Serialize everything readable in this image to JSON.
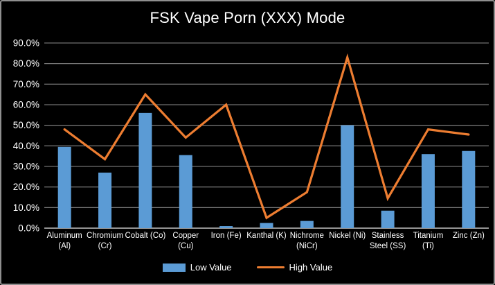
{
  "window": {
    "background": "#000000",
    "border_color": "#8f8f8f",
    "text_color": "#ffffff"
  },
  "chart_data": {
    "type": "bar+line",
    "title": "FSK Vape Porn (XXX) Mode",
    "categories": [
      "Aluminum (Al)",
      "Chromium (Cr)",
      "Cobalt (Co)",
      "Copper (Cu)",
      "Iron (Fe)",
      "Kanthal (K)",
      "Nichrome (NiCr)",
      "Nickel (Ni)",
      "Stainless Steel (SS)",
      "Titanium (Ti)",
      "Zinc (Zn)"
    ],
    "category_label_lines": [
      [
        "Aluminum",
        "(Al)"
      ],
      [
        "Chromium",
        "(Cr)"
      ],
      [
        "Cobalt (Co)"
      ],
      [
        "Copper",
        "(Cu)"
      ],
      [
        "Iron (Fe)"
      ],
      [
        "Kanthal (K)"
      ],
      [
        "Nichrome",
        "(NiCr)"
      ],
      [
        "Nickel (Ni)"
      ],
      [
        "Stainless",
        "Steel (SS)"
      ],
      [
        "Titanium",
        "(Ti)"
      ],
      [
        "Zinc (Zn)"
      ]
    ],
    "series": [
      {
        "name": "Low Value",
        "type": "bar",
        "color": "#5b9bd5",
        "values": [
          39.5,
          27,
          56,
          35.5,
          1,
          2.5,
          3.5,
          50,
          8.5,
          36,
          37.5
        ]
      },
      {
        "name": "High Value",
        "type": "line",
        "color": "#ed7d31",
        "values": [
          48,
          33.5,
          65,
          44,
          60,
          5,
          17.5,
          83,
          14.5,
          48,
          45.5
        ]
      }
    ],
    "ylim": [
      0,
      90
    ],
    "ytick_values": [
      0,
      10,
      20,
      30,
      40,
      50,
      60,
      70,
      80,
      90
    ],
    "ytick_labels": [
      "0.0%",
      "10.0%",
      "20.0%",
      "30.0%",
      "40.0%",
      "50.0%",
      "60.0%",
      "70.0%",
      "80.0%",
      "90.0%"
    ],
    "xlabel": "",
    "ylabel": "",
    "grid": true,
    "gridline_color": "#8c8c8c",
    "axis_line_color": "#a8a8a8",
    "legend_position": "bottom"
  }
}
